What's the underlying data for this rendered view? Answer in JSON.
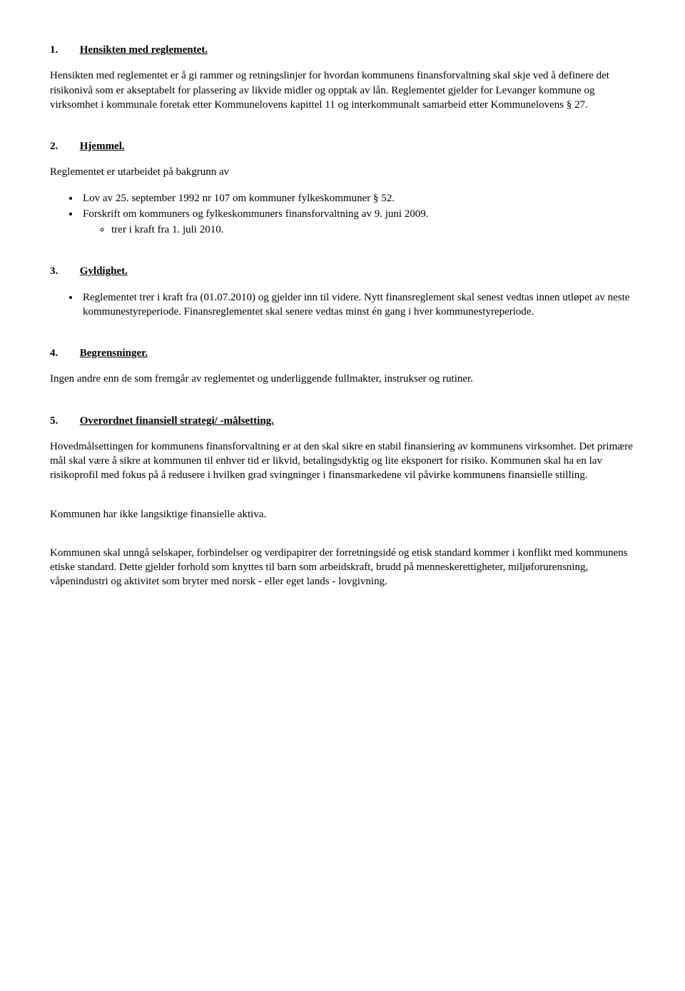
{
  "sections": {
    "s1": {
      "num": "1.",
      "title": "Hensikten med reglementet.",
      "p1": "Hensikten med reglementet er å gi rammer og retningslinjer for hvordan kommunens finansforvaltning skal skje ved å definere det risikonivå som er akseptabelt for plassering av likvide midler og opptak av lån. Reglementet gjelder for Levanger kommune og virksomhet i kommunale foretak etter Kommunelovens kapittel 11 og interkommunalt samarbeid etter Kommunelovens § 27."
    },
    "s2": {
      "num": "2.",
      "title": "Hjemmel.",
      "intro": "Reglementet er utarbeidet på bakgrunn av",
      "b1": "Lov av 25. september 1992 nr 107 om kommuner fylkeskommuner § 52.",
      "b2": "Forskrift om kommuners og fylkeskommuners finansforvaltning av 9. juni 2009.",
      "b2_sub": "trer i kraft fra 1. juli 2010."
    },
    "s3": {
      "num": "3.",
      "title": "Gyldighet.",
      "b1": "Reglementet trer i kraft fra (01.07.2010) og gjelder inn til videre. Nytt finansreglement skal senest vedtas innen utløpet av neste kommunestyreperiode. Finansreglementet skal senere vedtas minst én gang i hver kommunestyreperiode."
    },
    "s4": {
      "num": "4.",
      "title": "Begrensninger.",
      "p1": "Ingen andre enn de som fremgår av reglementet og underliggende fullmakter, instrukser og rutiner."
    },
    "s5": {
      "num": "5.",
      "title": "Overordnet finansiell strategi/ -målsetting.",
      "p1": "Hovedmålsettingen for kommunens finansforvaltning er at den skal sikre en stabil finansiering av kommunens virksomhet. Det primære mål skal være å sikre at kommunen til enhver tid er likvid, betalingsdyktig og lite eksponert for risiko. Kommunen skal ha en lav risikoprofil med fokus på å redusere i hvilken grad svingninger i finansmarkedene vil påvirke kommunens finansielle stilling.",
      "p2": "Kommunen har ikke langsiktige finansielle aktiva.",
      "p3": "Kommunen skal unngå selskaper, forbindelser og verdipapirer der forretningsidé og etisk standard kommer i konflikt med kommunens etiske standard. Dette gjelder forhold som knyttes til barn som arbeidskraft, brudd på menneskerettigheter, miljøforurensning, våpenindustri og aktivitet som bryter med norsk - eller eget lands - lovgivning."
    }
  }
}
